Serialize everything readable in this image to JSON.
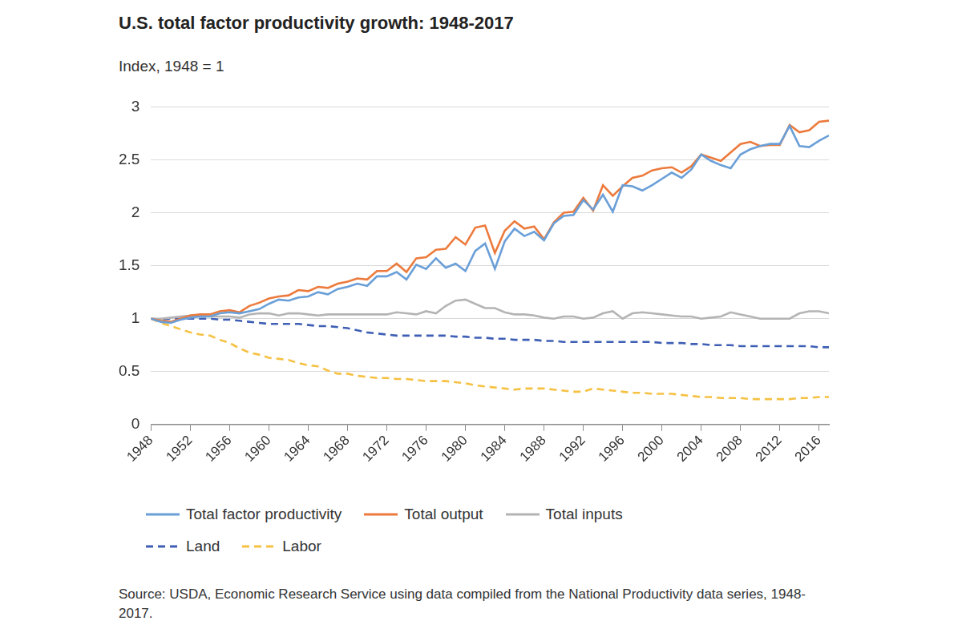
{
  "chart_data": {
    "type": "line",
    "title": "U.S. total factor productivity growth: 1948-2017",
    "y_label": "Index, 1948 = 1",
    "source": "Source: USDA, Economic Research Service using data compiled from the National Productivity data series, 1948-2017.",
    "x": [
      1948,
      1949,
      1950,
      1951,
      1952,
      1953,
      1954,
      1955,
      1956,
      1957,
      1958,
      1959,
      1960,
      1961,
      1962,
      1963,
      1964,
      1965,
      1966,
      1967,
      1968,
      1969,
      1970,
      1971,
      1972,
      1973,
      1974,
      1975,
      1976,
      1977,
      1978,
      1979,
      1980,
      1981,
      1982,
      1983,
      1984,
      1985,
      1986,
      1987,
      1988,
      1989,
      1990,
      1991,
      1992,
      1993,
      1994,
      1995,
      1996,
      1997,
      1998,
      1999,
      2000,
      2001,
      2002,
      2003,
      2004,
      2005,
      2006,
      2007,
      2008,
      2009,
      2010,
      2011,
      2012,
      2013,
      2014,
      2015,
      2016,
      2017
    ],
    "xlim": [
      1948,
      2017
    ],
    "xticks": [
      1948,
      1952,
      1956,
      1960,
      1964,
      1968,
      1972,
      1976,
      1980,
      1984,
      1988,
      1992,
      1996,
      2000,
      2004,
      2008,
      2012,
      2016
    ],
    "ylim": [
      0,
      3
    ],
    "yticks": [
      0,
      0.5,
      1,
      1.5,
      2,
      2.5,
      3
    ],
    "grid": "y",
    "legend": "bottom",
    "series": [
      {
        "name": "Total factor productivity",
        "color": "#6a9fd8",
        "line_style": "solid",
        "values": [
          1.0,
          0.97,
          0.96,
          0.99,
          1.01,
          1.02,
          1.02,
          1.05,
          1.06,
          1.05,
          1.07,
          1.09,
          1.14,
          1.18,
          1.17,
          1.2,
          1.21,
          1.25,
          1.23,
          1.28,
          1.3,
          1.33,
          1.31,
          1.4,
          1.4,
          1.44,
          1.37,
          1.51,
          1.47,
          1.57,
          1.48,
          1.52,
          1.45,
          1.64,
          1.71,
          1.47,
          1.73,
          1.85,
          1.78,
          1.82,
          1.74,
          1.9,
          1.97,
          1.98,
          2.12,
          2.03,
          2.17,
          2.01,
          2.26,
          2.25,
          2.21,
          2.26,
          2.32,
          2.38,
          2.33,
          2.41,
          2.55,
          2.49,
          2.45,
          2.42,
          2.55,
          2.6,
          2.63,
          2.65,
          2.65,
          2.82,
          2.63,
          2.62,
          2.68,
          2.73
        ]
      },
      {
        "name": "Total output",
        "color": "#ec7a3c",
        "line_style": "solid",
        "values": [
          1.0,
          0.98,
          0.97,
          1.0,
          1.03,
          1.04,
          1.04,
          1.07,
          1.08,
          1.06,
          1.12,
          1.15,
          1.19,
          1.21,
          1.22,
          1.27,
          1.26,
          1.3,
          1.29,
          1.33,
          1.35,
          1.38,
          1.37,
          1.45,
          1.45,
          1.52,
          1.44,
          1.57,
          1.58,
          1.65,
          1.66,
          1.77,
          1.7,
          1.86,
          1.88,
          1.62,
          1.83,
          1.92,
          1.85,
          1.87,
          1.75,
          1.91,
          2.0,
          2.01,
          2.14,
          2.02,
          2.26,
          2.16,
          2.25,
          2.33,
          2.35,
          2.4,
          2.42,
          2.43,
          2.38,
          2.44,
          2.55,
          2.52,
          2.49,
          2.57,
          2.65,
          2.67,
          2.63,
          2.64,
          2.64,
          2.83,
          2.76,
          2.78,
          2.86,
          2.87
        ]
      },
      {
        "name": "Total inputs",
        "color": "#b4b4b4",
        "line_style": "solid",
        "values": [
          1.0,
          1.0,
          1.01,
          1.02,
          1.03,
          1.03,
          1.02,
          1.02,
          1.02,
          1.01,
          1.04,
          1.05,
          1.05,
          1.03,
          1.05,
          1.05,
          1.04,
          1.03,
          1.04,
          1.04,
          1.04,
          1.04,
          1.04,
          1.04,
          1.04,
          1.06,
          1.05,
          1.04,
          1.07,
          1.05,
          1.12,
          1.17,
          1.18,
          1.14,
          1.1,
          1.1,
          1.06,
          1.04,
          1.04,
          1.03,
          1.01,
          1.0,
          1.02,
          1.02,
          1.0,
          1.01,
          1.05,
          1.07,
          1.0,
          1.05,
          1.06,
          1.05,
          1.04,
          1.03,
          1.02,
          1.02,
          1.0,
          1.01,
          1.02,
          1.06,
          1.04,
          1.02,
          1.0,
          1.0,
          1.0,
          1.0,
          1.05,
          1.07,
          1.07,
          1.05
        ]
      },
      {
        "name": "Land",
        "color": "#3f5fb5",
        "line_style": "dashed",
        "values": [
          1.0,
          0.99,
          1.0,
          1.0,
          1.0,
          1.0,
          1.0,
          0.99,
          0.99,
          0.98,
          0.97,
          0.96,
          0.95,
          0.95,
          0.95,
          0.95,
          0.94,
          0.93,
          0.93,
          0.92,
          0.91,
          0.89,
          0.87,
          0.86,
          0.85,
          0.84,
          0.84,
          0.84,
          0.84,
          0.84,
          0.84,
          0.83,
          0.83,
          0.82,
          0.82,
          0.81,
          0.81,
          0.8,
          0.8,
          0.8,
          0.79,
          0.79,
          0.78,
          0.78,
          0.78,
          0.78,
          0.78,
          0.78,
          0.78,
          0.78,
          0.78,
          0.78,
          0.77,
          0.77,
          0.77,
          0.76,
          0.76,
          0.75,
          0.75,
          0.75,
          0.74,
          0.74,
          0.74,
          0.74,
          0.74,
          0.74,
          0.74,
          0.74,
          0.73,
          0.73
        ]
      },
      {
        "name": "Labor",
        "color": "#f6c143",
        "line_style": "dashed",
        "values": [
          1.0,
          0.96,
          0.93,
          0.9,
          0.87,
          0.85,
          0.84,
          0.8,
          0.77,
          0.72,
          0.68,
          0.66,
          0.63,
          0.62,
          0.61,
          0.58,
          0.56,
          0.55,
          0.51,
          0.48,
          0.48,
          0.46,
          0.45,
          0.44,
          0.44,
          0.43,
          0.43,
          0.42,
          0.41,
          0.41,
          0.41,
          0.4,
          0.39,
          0.37,
          0.36,
          0.35,
          0.34,
          0.33,
          0.34,
          0.34,
          0.34,
          0.33,
          0.32,
          0.31,
          0.31,
          0.34,
          0.33,
          0.32,
          0.31,
          0.3,
          0.3,
          0.29,
          0.29,
          0.29,
          0.28,
          0.27,
          0.26,
          0.26,
          0.25,
          0.25,
          0.25,
          0.24,
          0.24,
          0.24,
          0.24,
          0.24,
          0.25,
          0.25,
          0.26,
          0.26
        ]
      }
    ]
  }
}
